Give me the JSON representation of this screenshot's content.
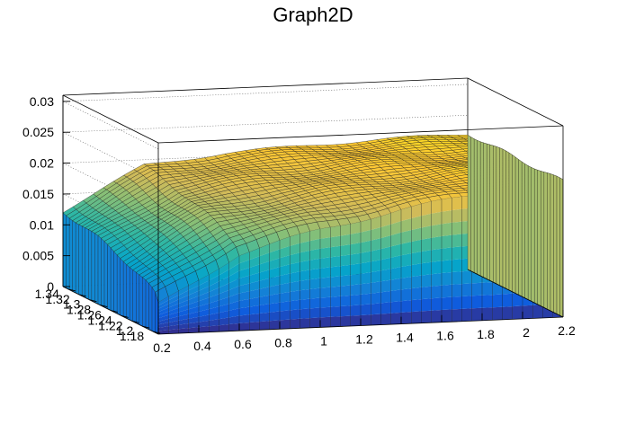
{
  "chart_data": {
    "type": "surface",
    "title": "Graph2D",
    "x_ticks": [
      "0.2",
      "0.4",
      "0.6",
      "0.8",
      "1",
      "1.2",
      "1.4",
      "1.6",
      "1.8",
      "2",
      "2.2"
    ],
    "y_ticks": [
      "1.18",
      "1.2",
      "1.22",
      "1.24",
      "1.26",
      "1.28",
      "1.3",
      "1.32",
      "1.34"
    ],
    "z_ticks": [
      "0",
      "0.005",
      "0.01",
      "0.015",
      "0.02",
      "0.025",
      "0.03"
    ],
    "xlim": [
      0.2,
      2.2
    ],
    "ylim": [
      1.17,
      1.35
    ],
    "zlim": [
      0,
      0.031
    ],
    "grid": true,
    "colormap": [
      "#352a87",
      "#0f5cdd",
      "#1481d6",
      "#06a4ca",
      "#2eb7a4",
      "#87bf77",
      "#d1bb59",
      "#fec832",
      "#f9fb0e"
    ],
    "z_samples": {
      "x": [
        0.2,
        0.6,
        1.0,
        1.4,
        1.8,
        2.2
      ],
      "y_max_edge": [
        0.0122,
        0.0191,
        0.0205,
        0.0212,
        0.0217,
        0.022
      ],
      "y_min_edge": [
        0.0048,
        0.0124,
        0.0158,
        0.0185,
        0.0206,
        0.022
      ]
    }
  }
}
